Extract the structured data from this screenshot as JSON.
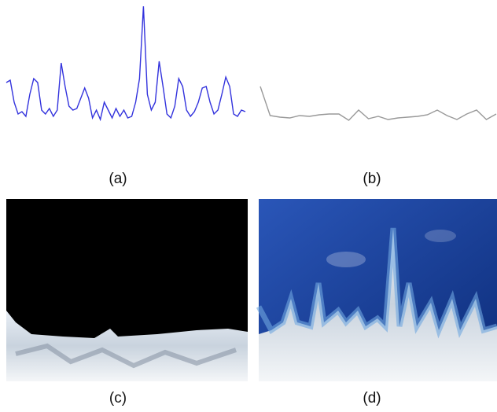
{
  "chart_data": [
    {
      "type": "line",
      "label": "(a)",
      "color": "#3333dd",
      "values": [
        55,
        58,
        30,
        15,
        18,
        12,
        40,
        60,
        55,
        20,
        15,
        22,
        12,
        20,
        80,
        50,
        25,
        20,
        22,
        35,
        48,
        35,
        10,
        20,
        8,
        30,
        20,
        10,
        22,
        12,
        20,
        10,
        12,
        30,
        60,
        152,
        40,
        20,
        30,
        82,
        50,
        15,
        10,
        25,
        60,
        50,
        20,
        12,
        18,
        30,
        48,
        50,
        30,
        15,
        20,
        40,
        62,
        50,
        15,
        12,
        20,
        18
      ]
    },
    {
      "type": "line",
      "label": "(b)",
      "color": "#999999",
      "values": [
        50,
        13,
        11,
        10,
        13,
        12,
        14,
        15,
        15,
        7,
        20,
        9,
        12,
        8,
        10,
        11,
        12,
        14,
        20,
        13,
        8,
        15,
        20,
        8,
        15
      ]
    }
  ],
  "images": [
    {
      "label": "(c)"
    },
    {
      "label": "(d)"
    }
  ]
}
